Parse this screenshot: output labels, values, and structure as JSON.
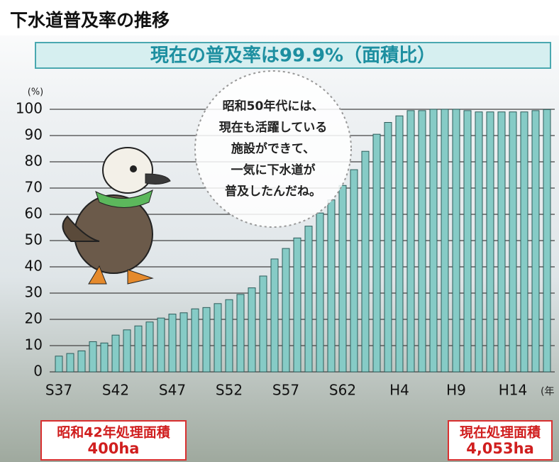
{
  "chart_data": {
    "type": "bar",
    "title": "下水道普及率の推移",
    "subtitle": "現在の普及率は99.9%（面積比）",
    "y_unit": "(%)",
    "x_unit": "(年",
    "annotation": [
      "昭和50年代には、",
      "現在も活躍している",
      "施設ができて、",
      "一気に下水道が",
      "普及したんだね。"
    ],
    "notes": [
      {
        "label": "昭和42年処理面積",
        "value": "400ha"
      },
      {
        "label": "現在処理面積",
        "value": "4,053ha"
      }
    ],
    "categories": [
      "S37",
      null,
      null,
      null,
      null,
      "S42",
      null,
      null,
      null,
      null,
      "S47",
      null,
      null,
      null,
      null,
      "S52",
      null,
      null,
      null,
      null,
      "S57",
      null,
      null,
      null,
      null,
      "S62",
      null,
      null,
      null,
      null,
      "H4",
      null,
      null,
      null,
      null,
      "H9",
      null,
      null,
      null,
      null,
      "H14",
      null,
      null,
      null
    ],
    "values": [
      6,
      7,
      8,
      11.5,
      11,
      14,
      16,
      17.5,
      19,
      20.5,
      22,
      22.5,
      24,
      24.5,
      26,
      27.5,
      29.5,
      32,
      36.5,
      43,
      47,
      51,
      55.5,
      60.5,
      65.5,
      71,
      77,
      84,
      90.5,
      95,
      97.5,
      99.5,
      99.5,
      100,
      100,
      100,
      99.5,
      99,
      99,
      99,
      99,
      99,
      99.5,
      99.9
    ],
    "color": "#86cbc6",
    "ylim": [
      0,
      100
    ],
    "yticks": [
      0,
      10,
      20,
      30,
      40,
      50,
      60,
      70,
      80,
      90,
      100
    ],
    "grid": true
  }
}
